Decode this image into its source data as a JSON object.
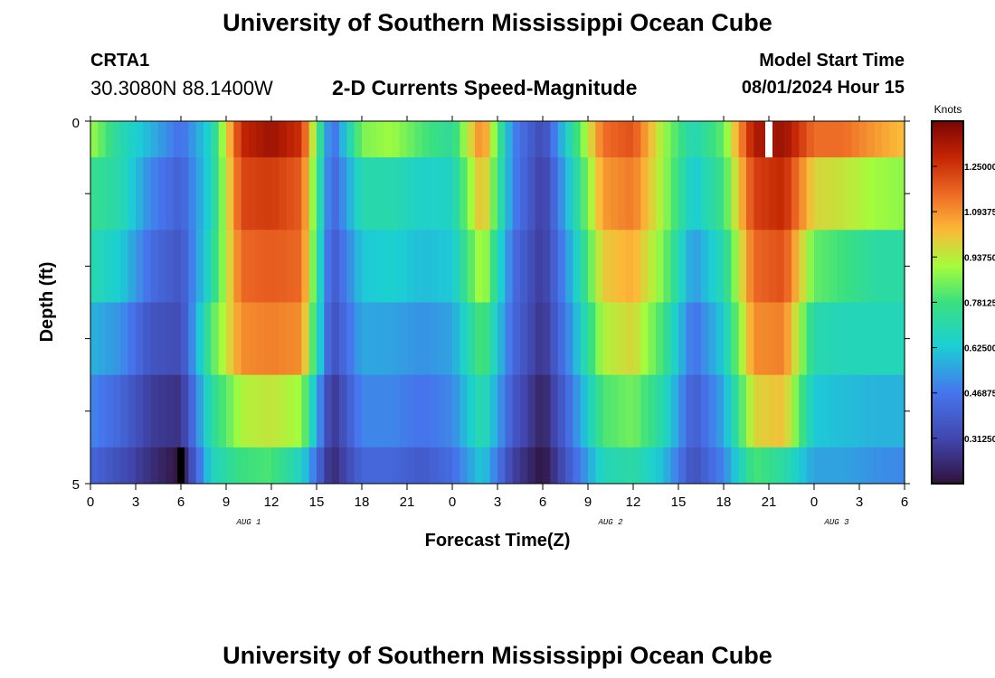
{
  "header": {
    "title": "University of Southern Mississippi Ocean Cube",
    "station": "CRTA1",
    "coords": "30.3080N  88.1400W",
    "subtitle": "2-D Currents Speed-Magnitude",
    "model_start_label": "Model Start Time",
    "model_start_value": "08/01/2024 Hour 15"
  },
  "footer": {
    "title": "University of Southern Mississippi Ocean Cube"
  },
  "chart_data": {
    "type": "heatmap",
    "title": "2-D Currents Speed-Magnitude",
    "xlabel": "Forecast Time(Z)",
    "ylabel": "Depth (ft)",
    "ylim": [
      0,
      5
    ],
    "y_ticks": [
      "0",
      "5"
    ],
    "x_tick_labels": [
      "0",
      "3",
      "6",
      "9",
      "12",
      "15",
      "18",
      "21",
      "0",
      "3",
      "6",
      "9",
      "12",
      "15",
      "18",
      "21",
      "0",
      "3",
      "6"
    ],
    "date_labels": [
      {
        "label": "AUG 1",
        "at_tick": 3.5
      },
      {
        "label": "AUG 2",
        "at_tick": 11.5
      },
      {
        "label": "AUG 3",
        "at_tick": 16.5
      }
    ],
    "colorbar": {
      "title": "Knots",
      "min": 0.156,
      "max": 1.406,
      "ticks": [
        "1.25000",
        "1.09375",
        "0.93750",
        "0.78125",
        "0.62500",
        "0.46875",
        "0.31250"
      ],
      "tick_values": [
        1.25,
        1.09375,
        0.9375,
        0.78125,
        0.625,
        0.46875,
        0.3125
      ]
    },
    "depth_rows": 6,
    "row_fractions": [
      0,
      0.1,
      0.3,
      0.5,
      0.7,
      0.9,
      1.0
    ],
    "hours": [
      0,
      2,
      4,
      6,
      8,
      10,
      12,
      14,
      16,
      18,
      20,
      22,
      24,
      26,
      28,
      30,
      32,
      34,
      36,
      38,
      40,
      42,
      44,
      46,
      48,
      50,
      52,
      54
    ],
    "speed_profiles": [
      [
        0.9,
        0.7,
        0.58,
        0.45,
        0.66,
        1.28,
        1.35,
        1.26,
        0.42,
        0.86,
        0.9,
        0.8,
        0.73,
        1.13,
        0.5,
        0.32,
        0.73,
        1.15,
        1.2,
        0.9,
        0.68,
        0.83,
        1.32,
        1.35,
        1.15,
        1.15,
        1.08,
        1.02
      ],
      [
        0.76,
        0.7,
        0.5,
        0.4,
        0.66,
        1.22,
        1.24,
        1.18,
        0.4,
        0.7,
        0.7,
        0.65,
        0.66,
        1.05,
        0.5,
        0.28,
        0.66,
        1.08,
        1.13,
        0.9,
        0.62,
        0.78,
        1.23,
        1.28,
        0.98,
        0.95,
        0.9,
        0.88
      ],
      [
        0.7,
        0.63,
        0.44,
        0.36,
        0.7,
        1.16,
        1.18,
        1.16,
        0.36,
        0.62,
        0.64,
        0.6,
        0.62,
        0.94,
        0.45,
        0.27,
        0.6,
        1.0,
        1.05,
        0.86,
        0.53,
        0.7,
        1.16,
        1.2,
        0.83,
        0.78,
        0.72,
        0.72
      ],
      [
        0.58,
        0.52,
        0.36,
        0.33,
        0.8,
        1.1,
        1.12,
        1.1,
        0.33,
        0.56,
        0.55,
        0.52,
        0.55,
        0.82,
        0.43,
        0.25,
        0.55,
        0.92,
        0.98,
        0.78,
        0.45,
        0.63,
        1.1,
        1.12,
        0.7,
        0.68,
        0.68,
        0.68
      ],
      [
        0.5,
        0.42,
        0.28,
        0.25,
        0.72,
        0.92,
        0.95,
        0.9,
        0.25,
        0.5,
        0.5,
        0.46,
        0.5,
        0.72,
        0.38,
        0.2,
        0.48,
        0.8,
        0.85,
        0.7,
        0.38,
        0.56,
        0.98,
        1.02,
        0.62,
        0.6,
        0.58,
        0.58
      ],
      [
        0.42,
        0.34,
        0.24,
        0.16,
        0.66,
        0.78,
        0.8,
        0.66,
        0.22,
        0.42,
        0.42,
        0.38,
        0.44,
        0.63,
        0.3,
        0.16,
        0.42,
        0.68,
        0.72,
        0.6,
        0.34,
        0.5,
        0.8,
        0.72,
        0.55,
        0.55,
        0.52,
        0.5
      ]
    ],
    "missing_cells": [
      {
        "hour": 6,
        "row": 5,
        "color": "#000000"
      },
      {
        "hour": 45,
        "row": 0,
        "color": "#ffffff"
      }
    ]
  }
}
